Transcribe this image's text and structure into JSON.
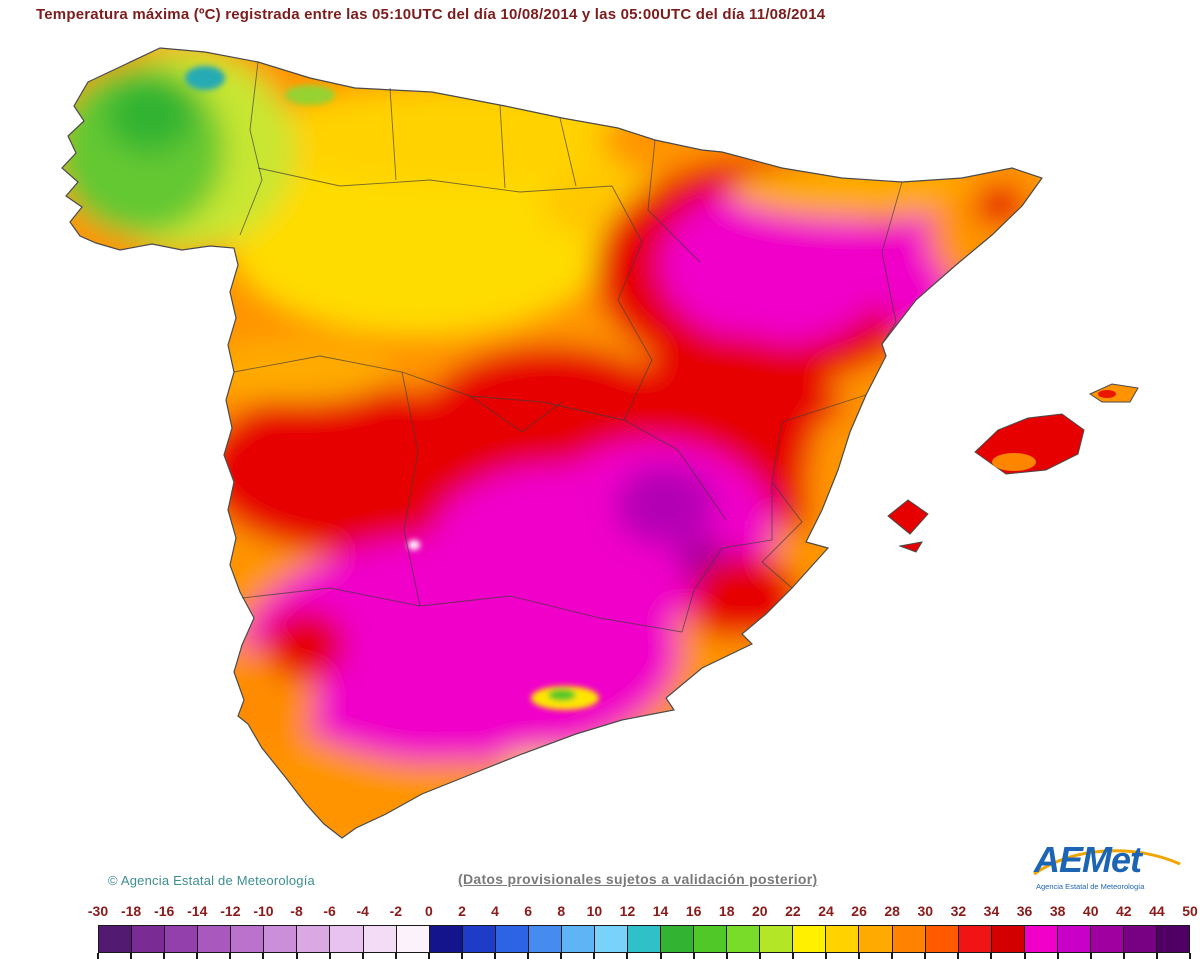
{
  "title": "Temperatura máxima (ºC) registrada entre las 05:10UTC del día 10/08/2014 y las 05:00UTC del día 11/08/2014",
  "map": {
    "area": "Peninsular Spain and Balearic Islands",
    "type": "maximum temperature heatmap",
    "visual_summary": "Coolest greens (14-20 ºC) over Galicia in the northwest; yellows (22-26 ºC) along the north coast and northern plateau; oranges (26-30 ºC) over the inner plateau; reds (32-36 ºC) over the west-center and Ebro area; magenta and purple (36-40+ ºC) over the Ebro valley, La Mancha, the southeast and Andalusia; Balearic Islands in orange and red."
  },
  "footer": {
    "copyright": "© Agencia Estatal de Meteorología",
    "provisional_note": "(Datos provisionales sujetos a validación posterior)",
    "logo": {
      "text": "AEMet",
      "subtext": "Agencia Estatal de Meteorología"
    }
  },
  "colors": {
    "title_text": "#7D1C1C",
    "scale_label_text": "#8B1A1A",
    "copyright_text": "#3E8E8E",
    "provisional_text": "#7a7a7a",
    "logo_blue": "#1C64B4",
    "logo_swoosh": "#F0A500"
  },
  "scale": {
    "unit": "ºC",
    "tick_labels": [
      "-30",
      "-18",
      "-16",
      "-14",
      "-12",
      "-10",
      "-8",
      "-6",
      "-4",
      "-2",
      "0",
      "2",
      "4",
      "6",
      "8",
      "10",
      "12",
      "14",
      "16",
      "18",
      "20",
      "22",
      "24",
      "26",
      "28",
      "30",
      "32",
      "34",
      "36",
      "38",
      "40",
      "42",
      "44",
      "50"
    ],
    "cell_colors": [
      "#521A70",
      "#7A2B94",
      "#9440AC",
      "#A958BE",
      "#BB72CC",
      "#CB8ED9",
      "#DAA9E4",
      "#E8C3EF",
      "#F2DCF6",
      "#FBF2FC",
      "#14148C",
      "#1E3CC8",
      "#2D64E6",
      "#468CF0",
      "#5FB4F5",
      "#78D2FA",
      "#30C0C8",
      "#32B432",
      "#50C828",
      "#78DC28",
      "#B4E628",
      "#FFF000",
      "#FFD200",
      "#FFAA00",
      "#FF8200",
      "#FF5A00",
      "#F01414",
      "#D20000",
      "#F000C8",
      "#C800C8",
      "#A000A0",
      "#780082",
      "#500064"
    ]
  }
}
